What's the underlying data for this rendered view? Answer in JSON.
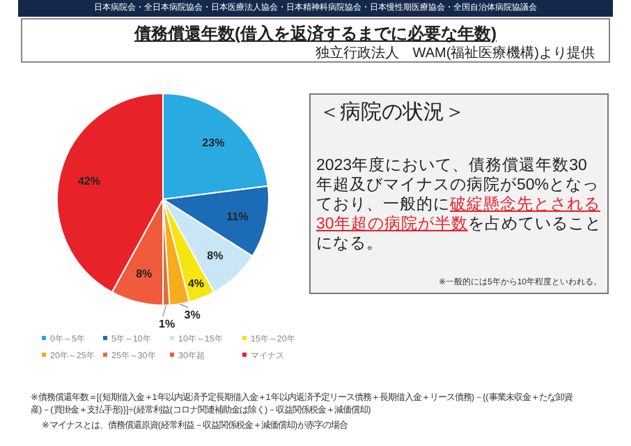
{
  "chart_data": {
    "type": "pie",
    "title": "債務償還年数(借入を返済するまでに必要な年数)",
    "subtitle": "独立行政法人　WAM(福祉医療機構)より提供",
    "categories": [
      "0年～5年",
      "5年～10年",
      "10年～15年",
      "15年～20年",
      "20年～25年",
      "25年～30年",
      "30年超",
      "マイナス"
    ],
    "values": [
      23,
      11,
      8,
      4,
      3,
      1,
      8,
      42
    ],
    "colors": [
      "#29abe2",
      "#1b6bb6",
      "#c8e6f5",
      "#f6e60f",
      "#f7ab1d",
      "#e0703a",
      "#ef5b3b",
      "#e82229"
    ],
    "value_labels": [
      "23%",
      "11%",
      "8%",
      "4%",
      "3%",
      "1%",
      "8%",
      "42%"
    ],
    "legend": "bottom",
    "annotations": [
      "日本病院会・全日本病院協会・日本医療法人協会・日本精神科病院協会・日本慢性期医療協会・全国自治体病院協議会",
      "＜病院の状況＞",
      "2023年度において、債務償還年数30年超及びマイナスの病院が50%となっており、一般的に",
      "破綻懸念先とされる30年超の病院が半数",
      "を占めていることになる。",
      "※一般的には5年から10年程度といわれる。",
      "※債務償還年数＝[(短期借入金＋1年以内返済予定長期借入金＋1年以内返済予定リース債務＋長期借入金＋リース債務)－{(事業未収金＋たな卸資産)－(買掛金＋支払手形)}]÷(経常利益(コロナ関連補助金は除く)－収益関係税金＋減価償却)",
      "※マイナスとは、債務償還原資(経常利益－収益関係税金＋減価償却)が赤字の場合"
    ]
  }
}
